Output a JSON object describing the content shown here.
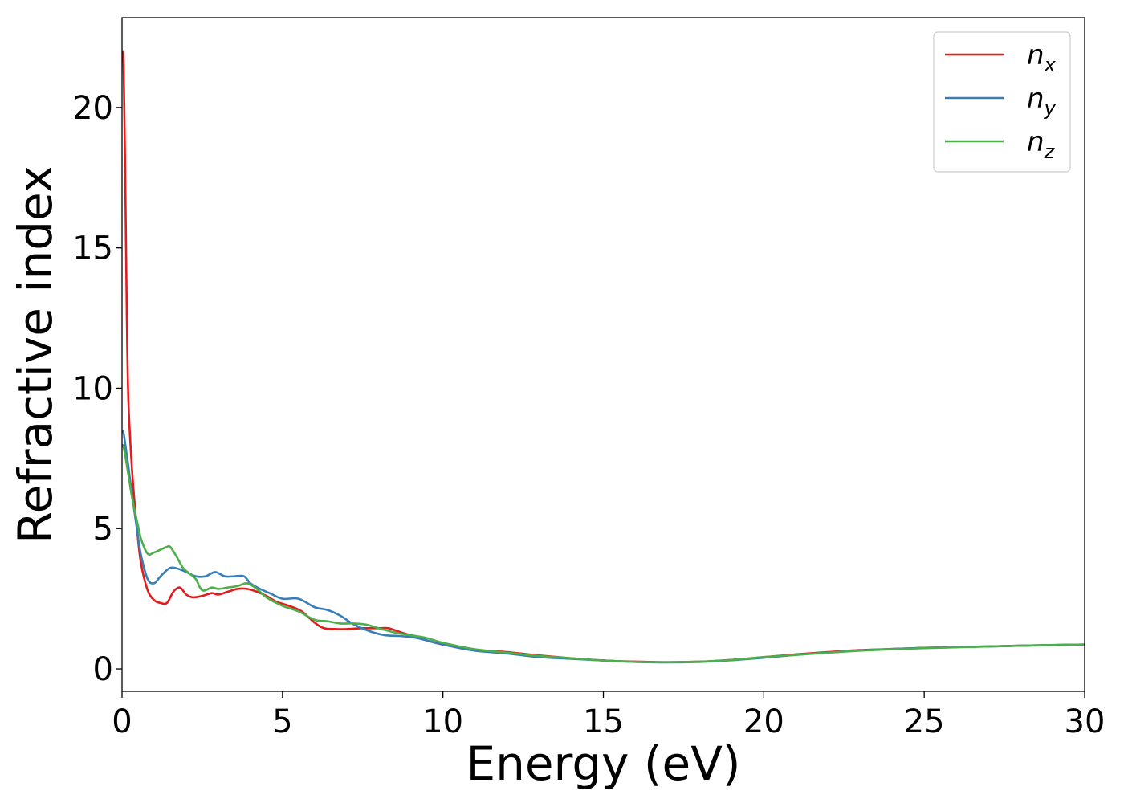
{
  "chart_data": {
    "type": "line",
    "xlabel": "Energy (eV)",
    "ylabel": "Refractive index",
    "xlim": [
      0,
      30
    ],
    "ylim": [
      -0.8,
      23.2
    ],
    "xticks": [
      0,
      5,
      10,
      15,
      20,
      25,
      30
    ],
    "yticks": [
      0,
      5,
      10,
      15,
      20
    ],
    "grid": false,
    "legend_position": "top-right",
    "series": [
      {
        "name": "n_x",
        "legend_base": "n",
        "legend_sub": "x",
        "color": "#e41a1c",
        "x": [
          0,
          0.05,
          0.1,
          0.15,
          0.2,
          0.3,
          0.4,
          0.5,
          0.6,
          0.8,
          1.0,
          1.2,
          1.4,
          1.6,
          1.8,
          2.0,
          2.2,
          2.5,
          2.8,
          3.0,
          3.3,
          3.6,
          3.9,
          4.2,
          4.5,
          4.8,
          5.2,
          5.6,
          6.0,
          6.3,
          6.7,
          7.0,
          7.5,
          8.0,
          8.3,
          8.7,
          9.2,
          9.7,
          10.2,
          11.0,
          12.0,
          13.0,
          14.0,
          15.0,
          16.0,
          17.0,
          18.0,
          19.0,
          20.0,
          21.0,
          22.0,
          23.0,
          24.0,
          25.0,
          26.0,
          27.0,
          28.0,
          29.0,
          30.0
        ],
        "y": [
          22.0,
          21.5,
          17.5,
          12.5,
          9.5,
          7.3,
          5.8,
          4.6,
          3.7,
          2.8,
          2.45,
          2.35,
          2.35,
          2.75,
          2.9,
          2.65,
          2.55,
          2.6,
          2.7,
          2.65,
          2.75,
          2.85,
          2.85,
          2.75,
          2.6,
          2.4,
          2.25,
          2.05,
          1.65,
          1.45,
          1.42,
          1.42,
          1.45,
          1.45,
          1.45,
          1.3,
          1.12,
          0.95,
          0.82,
          0.68,
          0.6,
          0.48,
          0.38,
          0.3,
          0.26,
          0.24,
          0.26,
          0.32,
          0.42,
          0.52,
          0.6,
          0.67,
          0.71,
          0.75,
          0.78,
          0.8,
          0.83,
          0.85,
          0.87
        ]
      },
      {
        "name": "n_y",
        "legend_base": "n",
        "legend_sub": "y",
        "color": "#377eb8",
        "x": [
          0,
          0.05,
          0.1,
          0.2,
          0.3,
          0.4,
          0.5,
          0.6,
          0.8,
          1.0,
          1.2,
          1.5,
          1.8,
          2.0,
          2.3,
          2.6,
          2.9,
          3.2,
          3.5,
          3.8,
          4.0,
          4.3,
          4.6,
          5.0,
          5.5,
          6.0,
          6.4,
          6.8,
          7.2,
          7.7,
          8.2,
          8.7,
          9.2,
          9.7,
          10.2,
          11.0,
          12.0,
          13.0,
          14.0,
          15.0,
          16.0,
          17.0,
          18.0,
          19.0,
          20.0,
          21.0,
          22.0,
          23.0,
          24.0,
          25.0,
          26.0,
          27.0,
          28.0,
          29.0,
          30.0
        ],
        "y": [
          8.5,
          8.4,
          8.0,
          7.2,
          6.3,
          5.5,
          4.7,
          4.0,
          3.2,
          3.05,
          3.3,
          3.6,
          3.55,
          3.45,
          3.3,
          3.3,
          3.45,
          3.3,
          3.3,
          3.3,
          3.05,
          2.85,
          2.7,
          2.5,
          2.5,
          2.2,
          2.1,
          1.9,
          1.6,
          1.35,
          1.2,
          1.17,
          1.1,
          0.95,
          0.82,
          0.65,
          0.55,
          0.42,
          0.36,
          0.3,
          0.25,
          0.23,
          0.25,
          0.31,
          0.4,
          0.5,
          0.58,
          0.66,
          0.71,
          0.75,
          0.78,
          0.8,
          0.83,
          0.85,
          0.87
        ]
      },
      {
        "name": "n_z",
        "legend_base": "n",
        "legend_sub": "z",
        "color": "#4daf4a",
        "x": [
          0,
          0.05,
          0.1,
          0.2,
          0.3,
          0.4,
          0.5,
          0.6,
          0.8,
          1.0,
          1.2,
          1.4,
          1.5,
          1.7,
          1.9,
          2.1,
          2.3,
          2.5,
          2.8,
          3.0,
          3.3,
          3.6,
          3.9,
          4.2,
          4.5,
          5.0,
          5.5,
          6.0,
          6.4,
          6.8,
          7.2,
          7.6,
          8.0,
          8.5,
          9.0,
          9.5,
          10.0,
          11.0,
          12.0,
          13.0,
          14.0,
          15.0,
          16.0,
          17.0,
          18.0,
          19.0,
          20.0,
          21.0,
          22.0,
          23.0,
          24.0,
          25.0,
          26.0,
          27.0,
          28.0,
          29.0,
          30.0
        ],
        "y": [
          8.0,
          7.9,
          7.6,
          6.9,
          6.2,
          5.6,
          5.1,
          4.6,
          4.1,
          4.15,
          4.25,
          4.35,
          4.35,
          4.0,
          3.6,
          3.4,
          3.2,
          2.8,
          2.9,
          2.85,
          2.9,
          2.95,
          3.05,
          2.85,
          2.55,
          2.25,
          2.05,
          1.75,
          1.7,
          1.62,
          1.62,
          1.58,
          1.45,
          1.3,
          1.2,
          1.1,
          0.93,
          0.7,
          0.58,
          0.46,
          0.38,
          0.3,
          0.25,
          0.24,
          0.26,
          0.32,
          0.42,
          0.5,
          0.58,
          0.65,
          0.7,
          0.74,
          0.77,
          0.8,
          0.83,
          0.85,
          0.87
        ]
      }
    ]
  }
}
